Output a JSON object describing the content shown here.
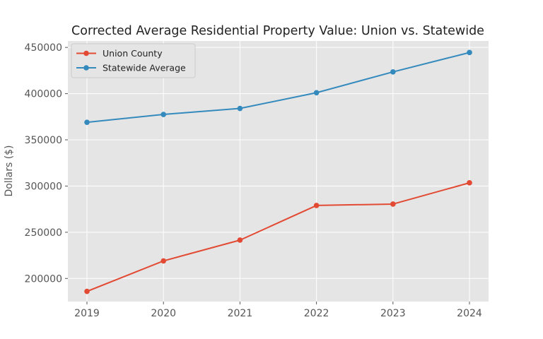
{
  "chart_data": {
    "type": "line",
    "title": "Corrected Average Residential Property Value: Union vs. Statewide",
    "xlabel": "",
    "ylabel": "Dollars ($)",
    "x": [
      "2019",
      "2020",
      "2021",
      "2022",
      "2023",
      "2024"
    ],
    "ylim": [
      175000,
      457000
    ],
    "yticks": [
      200000,
      250000,
      300000,
      350000,
      400000,
      450000
    ],
    "grid": true,
    "legend_position": "top-left",
    "series": [
      {
        "name": "Union County",
        "color": "#E24A33",
        "values": [
          186000,
          219000,
          241500,
          279000,
          280500,
          303500
        ]
      },
      {
        "name": "Statewide Average",
        "color": "#348ABD",
        "values": [
          369000,
          377500,
          384000,
          401000,
          423500,
          444500
        ]
      }
    ]
  }
}
